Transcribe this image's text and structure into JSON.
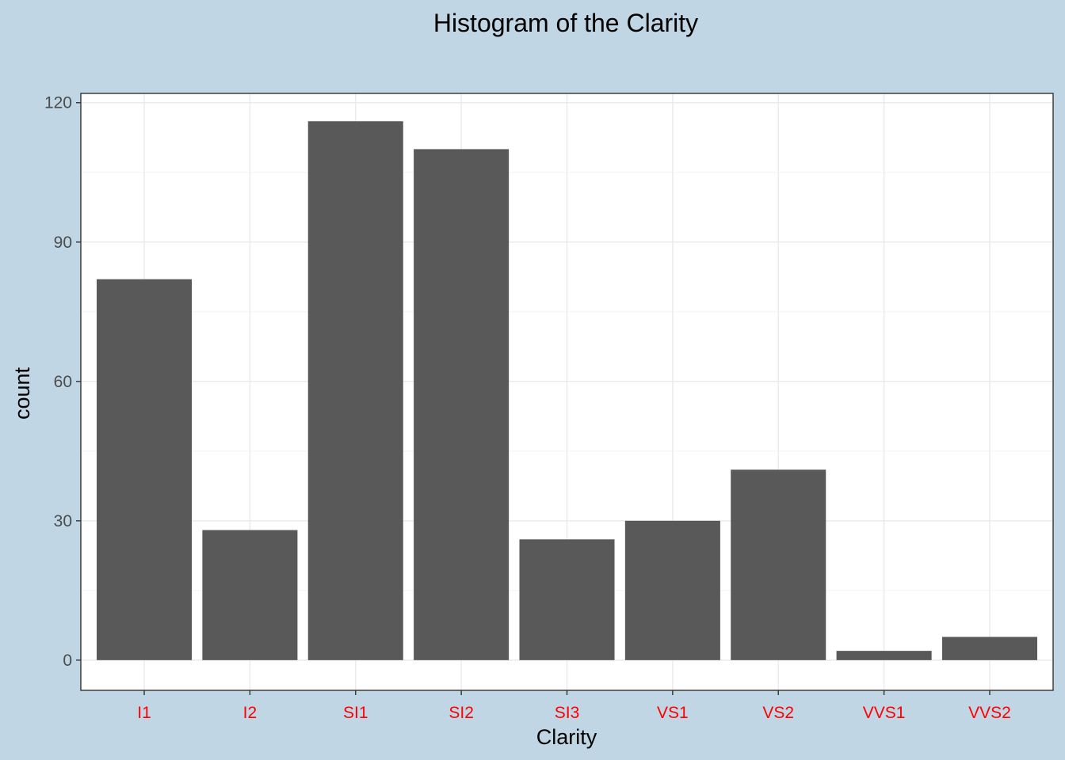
{
  "chart_data": {
    "type": "bar",
    "title": "Histogram of the Clarity",
    "xlabel": "Clarity",
    "ylabel": "count",
    "categories": [
      "I1",
      "I2",
      "SI1",
      "SI2",
      "SI3",
      "VS1",
      "VS2",
      "VVS1",
      "VVS2"
    ],
    "values": [
      82,
      28,
      116,
      110,
      26,
      30,
      41,
      2,
      5
    ],
    "ylim": [
      -6.5,
      122
    ],
    "yticks": [
      0,
      30,
      60,
      90,
      120
    ],
    "grid": true,
    "legend": "none"
  },
  "colors": {
    "plot_background": "#c0d6e4",
    "panel_background": "#ffffff",
    "bar_fill": "#595959",
    "grid_major": "#ebebeb",
    "grid_minor": "#f3f3f3",
    "panel_border": "#333333",
    "x_tick_label": "#ff0000",
    "y_tick_label": "#4d4d4d"
  }
}
